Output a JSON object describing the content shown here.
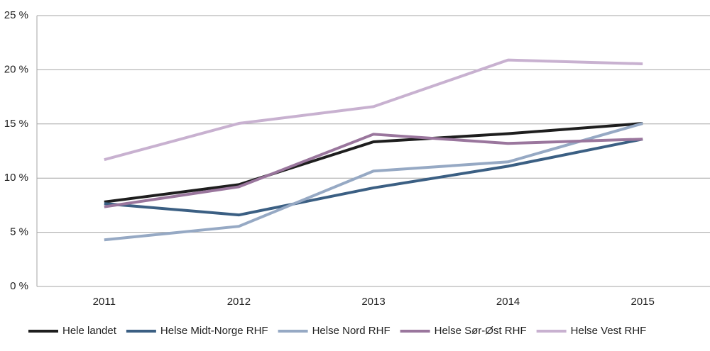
{
  "chart_data": {
    "type": "line",
    "categories": [
      "2011",
      "2012",
      "2013",
      "2014",
      "2015"
    ],
    "series": [
      {
        "name": "Hele landet",
        "color": "#1e1e1e",
        "values": [
          7.8,
          9.4,
          13.35,
          14.1,
          15.05
        ]
      },
      {
        "name": "Helse Midt-Norge RHF",
        "color": "#3b5f83",
        "values": [
          7.65,
          6.6,
          9.1,
          11.1,
          13.6
        ]
      },
      {
        "name": "Helse Nord RHF",
        "color": "#96a9c4",
        "values": [
          4.3,
          5.55,
          10.65,
          11.5,
          15.05
        ]
      },
      {
        "name": "Helse Sør-Øst RHF",
        "color": "#9a769d",
        "values": [
          7.35,
          9.2,
          14.05,
          13.2,
          13.6
        ]
      },
      {
        "name": "Helse Vest RHF",
        "color": "#c8b1d0",
        "values": [
          11.7,
          15.05,
          16.6,
          20.9,
          20.55
        ]
      }
    ],
    "ylim": [
      0,
      25
    ],
    "yticks": [
      {
        "value": 0,
        "label": "0 %"
      },
      {
        "value": 5,
        "label": "5 %"
      },
      {
        "value": 10,
        "label": "10 %"
      },
      {
        "value": 15,
        "label": "15 %"
      },
      {
        "value": 20,
        "label": "20 %"
      },
      {
        "value": 25,
        "label": "25 %"
      }
    ],
    "grid": true,
    "legend": "bottom"
  }
}
